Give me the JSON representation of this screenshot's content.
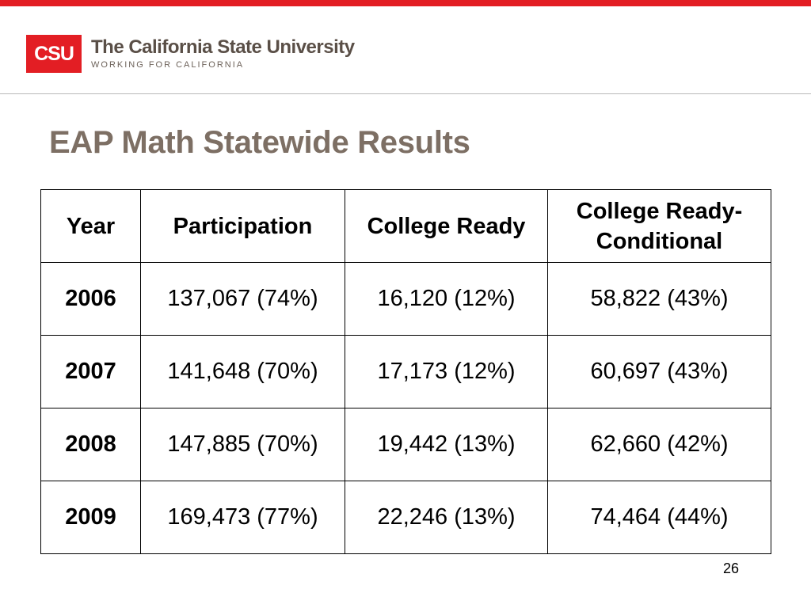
{
  "branding": {
    "logo_mark": "CSU",
    "name": "The California State University",
    "tagline": "WORKING FOR CALIFORNIA",
    "brand_color": "#e31e24"
  },
  "slide": {
    "title": "EAP Math Statewide Results",
    "page_number": "26"
  },
  "table": {
    "headers": [
      "Year",
      "Participation",
      "College Ready",
      "College Ready-\nConditional"
    ],
    "rows": [
      {
        "year": "2006",
        "participation": "137,067 (74%)",
        "college_ready": "16,120 (12%)",
        "conditional": "58,822 (43%)"
      },
      {
        "year": "2007",
        "participation": "141,648 (70%)",
        "college_ready": "17,173 (12%)",
        "conditional": "60,697 (43%)"
      },
      {
        "year": "2008",
        "participation": "147,885 (70%)",
        "college_ready": "19,442 (13%)",
        "conditional": "62,660 (42%)"
      },
      {
        "year": "2009",
        "participation": "169,473 (77%)",
        "college_ready": "22,246 (13%)",
        "conditional": "74,464 (44%)"
      }
    ]
  }
}
